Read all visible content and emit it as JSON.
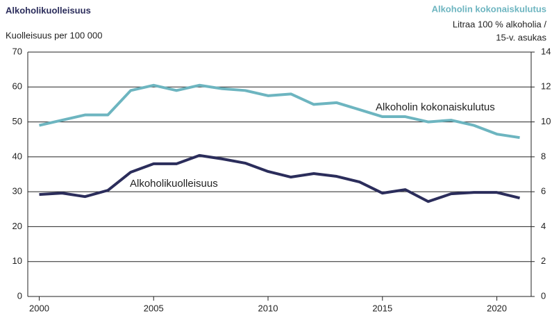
{
  "chart_data": {
    "type": "line",
    "title": "Alkoholikuolleisuus",
    "ylabel": "Kuolleisuus per 100 000",
    "y2title": "Alkoholin kokonaiskulutus",
    "y2label": [
      "Litraa 100 % alkoholia /",
      "15-v. asukas"
    ],
    "annotations": [
      "Alkoholin kokonaiskulutus",
      "Alkoholikuolleisuus"
    ],
    "x": [
      2000,
      2001,
      2002,
      2003,
      2004,
      2005,
      2006,
      2007,
      2008,
      2009,
      2010,
      2011,
      2012,
      2013,
      2014,
      2015,
      2016,
      2017,
      2018,
      2019,
      2020,
      2021
    ],
    "series": [
      {
        "name": "Alkoholikuolleisuus",
        "color": "#2b2d5b",
        "values": [
          29.2,
          29.6,
          28.6,
          30.4,
          35.6,
          38.0,
          38.0,
          40.4,
          39.4,
          38.2,
          35.8,
          34.2,
          35.2,
          34.4,
          32.8,
          29.6,
          30.6,
          27.2,
          29.4,
          29.8,
          29.8,
          28.2
        ]
      },
      {
        "name": "Alkoholin kokonaiskulutus",
        "color": "#6db5c0",
        "axis": "y2",
        "values": [
          9.8,
          10.1,
          10.4,
          10.4,
          11.8,
          12.1,
          11.8,
          12.1,
          11.9,
          11.8,
          11.5,
          11.6,
          11.0,
          11.1,
          10.7,
          10.3,
          10.3,
          10.0,
          10.1,
          9.8,
          9.3,
          9.1
        ]
      }
    ],
    "xlim": [
      1999.5,
      2021.5
    ],
    "xticks": [
      2000,
      2005,
      2010,
      2015,
      2020
    ],
    "ylim": [
      0,
      70
    ],
    "yticks": [
      0,
      10,
      20,
      30,
      40,
      50,
      60,
      70
    ],
    "y2lim": [
      0,
      14
    ],
    "y2ticks": [
      0,
      2,
      4,
      6,
      8,
      10,
      12,
      14
    ],
    "grid": true
  }
}
